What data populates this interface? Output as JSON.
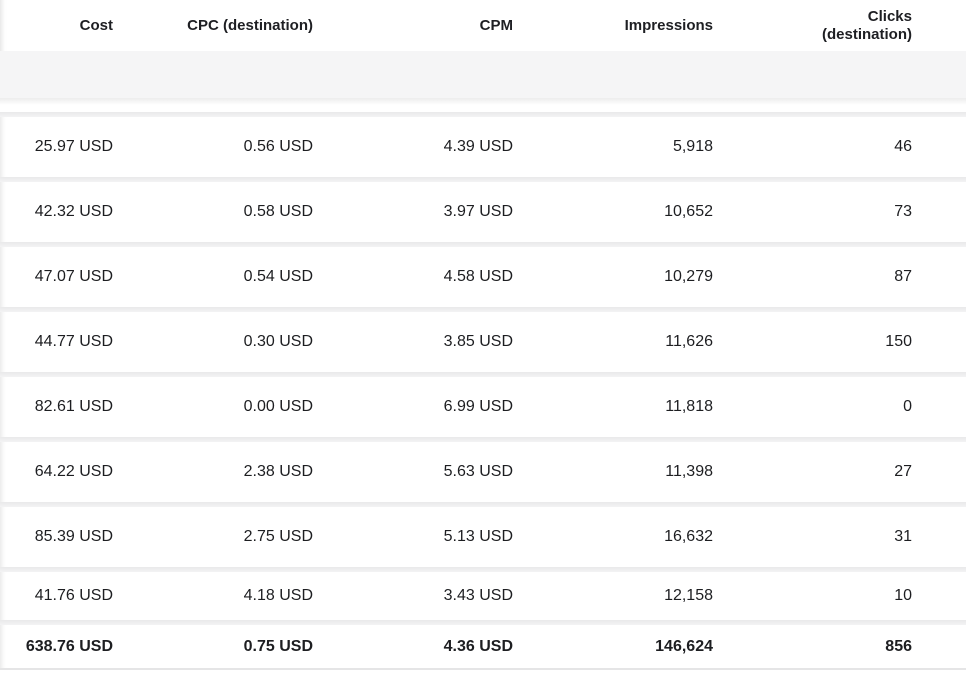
{
  "table": {
    "columns": [
      "Cost",
      "CPC (destination)",
      "CPM",
      "Impressions",
      "Clicks (destination)"
    ],
    "rows": [
      {
        "cost": "25.97 USD",
        "cpc": "0.56 USD",
        "cpm": "4.39 USD",
        "impressions": "5,918",
        "clicks": "46"
      },
      {
        "cost": "42.32 USD",
        "cpc": "0.58 USD",
        "cpm": "3.97 USD",
        "impressions": "10,652",
        "clicks": "73"
      },
      {
        "cost": "47.07 USD",
        "cpc": "0.54 USD",
        "cpm": "4.58 USD",
        "impressions": "10,279",
        "clicks": "87"
      },
      {
        "cost": "44.77 USD",
        "cpc": "0.30 USD",
        "cpm": "3.85 USD",
        "impressions": "11,626",
        "clicks": "150"
      },
      {
        "cost": "82.61 USD",
        "cpc": "0.00 USD",
        "cpm": "6.99 USD",
        "impressions": "11,818",
        "clicks": "0"
      },
      {
        "cost": "64.22 USD",
        "cpc": "2.38 USD",
        "cpm": "5.63 USD",
        "impressions": "11,398",
        "clicks": "27"
      },
      {
        "cost": "85.39 USD",
        "cpc": "2.75 USD",
        "cpm": "5.13 USD",
        "impressions": "16,632",
        "clicks": "31"
      },
      {
        "cost": "41.76 USD",
        "cpc": "4.18 USD",
        "cpm": "3.43 USD",
        "impressions": "12,158",
        "clicks": "10"
      }
    ],
    "total": {
      "cost": "638.76 USD",
      "cpc": "0.75 USD",
      "cpm": "4.36 USD",
      "impressions": "146,624",
      "clicks": "856"
    }
  },
  "colors": {
    "text": "#1d1e21",
    "header_text": "#1e1f23",
    "summary_band": "#f5f5f6",
    "row_separator": "#ededee",
    "row_background": "#ffffff",
    "total_border": "#e5e5e6"
  }
}
